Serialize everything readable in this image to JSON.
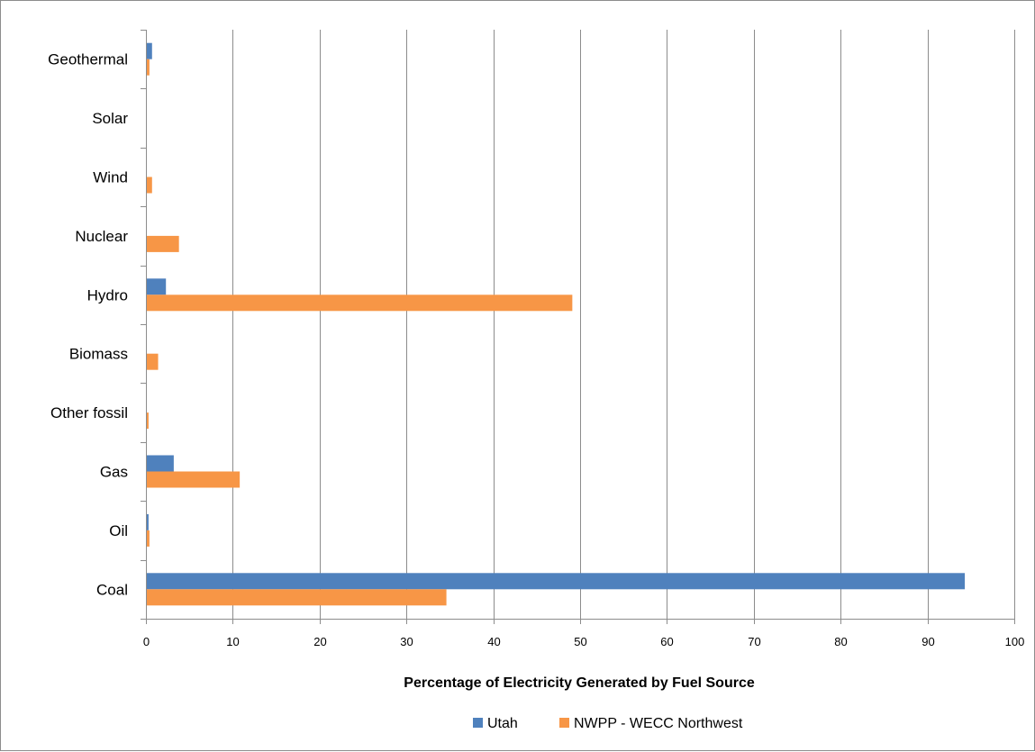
{
  "chart_data": {
    "type": "bar",
    "orientation": "horizontal",
    "categories": [
      "Coal",
      "Oil",
      "Gas",
      "Other fossil",
      "Biomass",
      "Hydro",
      "Nuclear",
      "Wind",
      "Solar",
      "Geothermal"
    ],
    "series": [
      {
        "name": "Utah",
        "color": "#4f81bd",
        "values": [
          94.2,
          0.2,
          3.1,
          0.0,
          0.0,
          2.2,
          0.0,
          0.0,
          0.0,
          0.6
        ]
      },
      {
        "name": "NWPP - WECC Northwest",
        "color": "#f79646",
        "values": [
          34.5,
          0.3,
          10.7,
          0.2,
          1.3,
          49.0,
          3.7,
          0.6,
          0.0,
          0.3
        ]
      }
    ],
    "xlabel": "Percentage of Electricity Generated by Fuel Source",
    "xlim": [
      0,
      100
    ],
    "xticks": [
      0,
      10,
      20,
      30,
      40,
      50,
      60,
      70,
      80,
      90,
      100
    ],
    "grid": true,
    "legend_position": "bottom"
  }
}
